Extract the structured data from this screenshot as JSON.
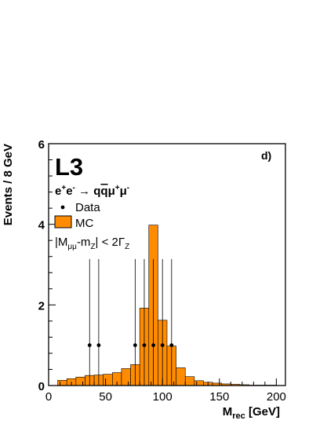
{
  "chart_data": {
    "type": "bar",
    "panel_label": "d)",
    "experiment": "L3",
    "process": {
      "prefix": "e",
      "sup1": "+",
      "mid": "e",
      "sup2": "-",
      "arrow": " → ",
      "q1": "q",
      "q2": "q",
      "mu1": "μ",
      "sup3": "+",
      "mu2": "μ",
      "sup4": "-"
    },
    "legend": {
      "data_label": "Data",
      "mc_label": "MC",
      "cut": {
        "p1": "|M",
        "s1": "μμ",
        "p2": "-m",
        "s2": "Z",
        "p3": "| < 2Γ",
        "s3": "Z"
      }
    },
    "xlabel": {
      "main": "M",
      "sub": "rec",
      "unit": " [GeV]"
    },
    "ylabel": "Events / 8 GeV",
    "xlim": [
      0,
      208
    ],
    "ylim": [
      0,
      6
    ],
    "xticks": [
      0,
      50,
      100,
      150,
      200
    ],
    "yticks": [
      0,
      2,
      4,
      6
    ],
    "mc_bins": {
      "edges": [
        8,
        16,
        24,
        32,
        40,
        48,
        56,
        64,
        72,
        80,
        88,
        96,
        104,
        112,
        120,
        128,
        136,
        144,
        152,
        160,
        168,
        176,
        184,
        192,
        200
      ],
      "values": [
        0.13,
        0.17,
        0.21,
        0.25,
        0.26,
        0.28,
        0.32,
        0.42,
        0.52,
        1.92,
        3.98,
        1.62,
        0.98,
        0.44,
        0.22,
        0.12,
        0.08,
        0.06,
        0.04,
        0.03,
        0.02,
        0.01,
        0.01,
        0.01
      ]
    },
    "data_points": [
      {
        "x": 36,
        "y": 1,
        "err_low": 1,
        "err_high": 2.14
      },
      {
        "x": 44,
        "y": 1,
        "err_low": 1,
        "err_high": 2.14
      },
      {
        "x": 76,
        "y": 1,
        "err_low": 1,
        "err_high": 2.14
      },
      {
        "x": 84,
        "y": 1,
        "err_low": 1,
        "err_high": 2.14
      },
      {
        "x": 92,
        "y": 1,
        "err_low": 1,
        "err_high": 2.14
      },
      {
        "x": 100,
        "y": 1,
        "err_low": 1,
        "err_high": 2.14
      },
      {
        "x": 108,
        "y": 1,
        "err_low": 1,
        "err_high": 2.14
      }
    ],
    "mc_color": "#ff8c00"
  }
}
